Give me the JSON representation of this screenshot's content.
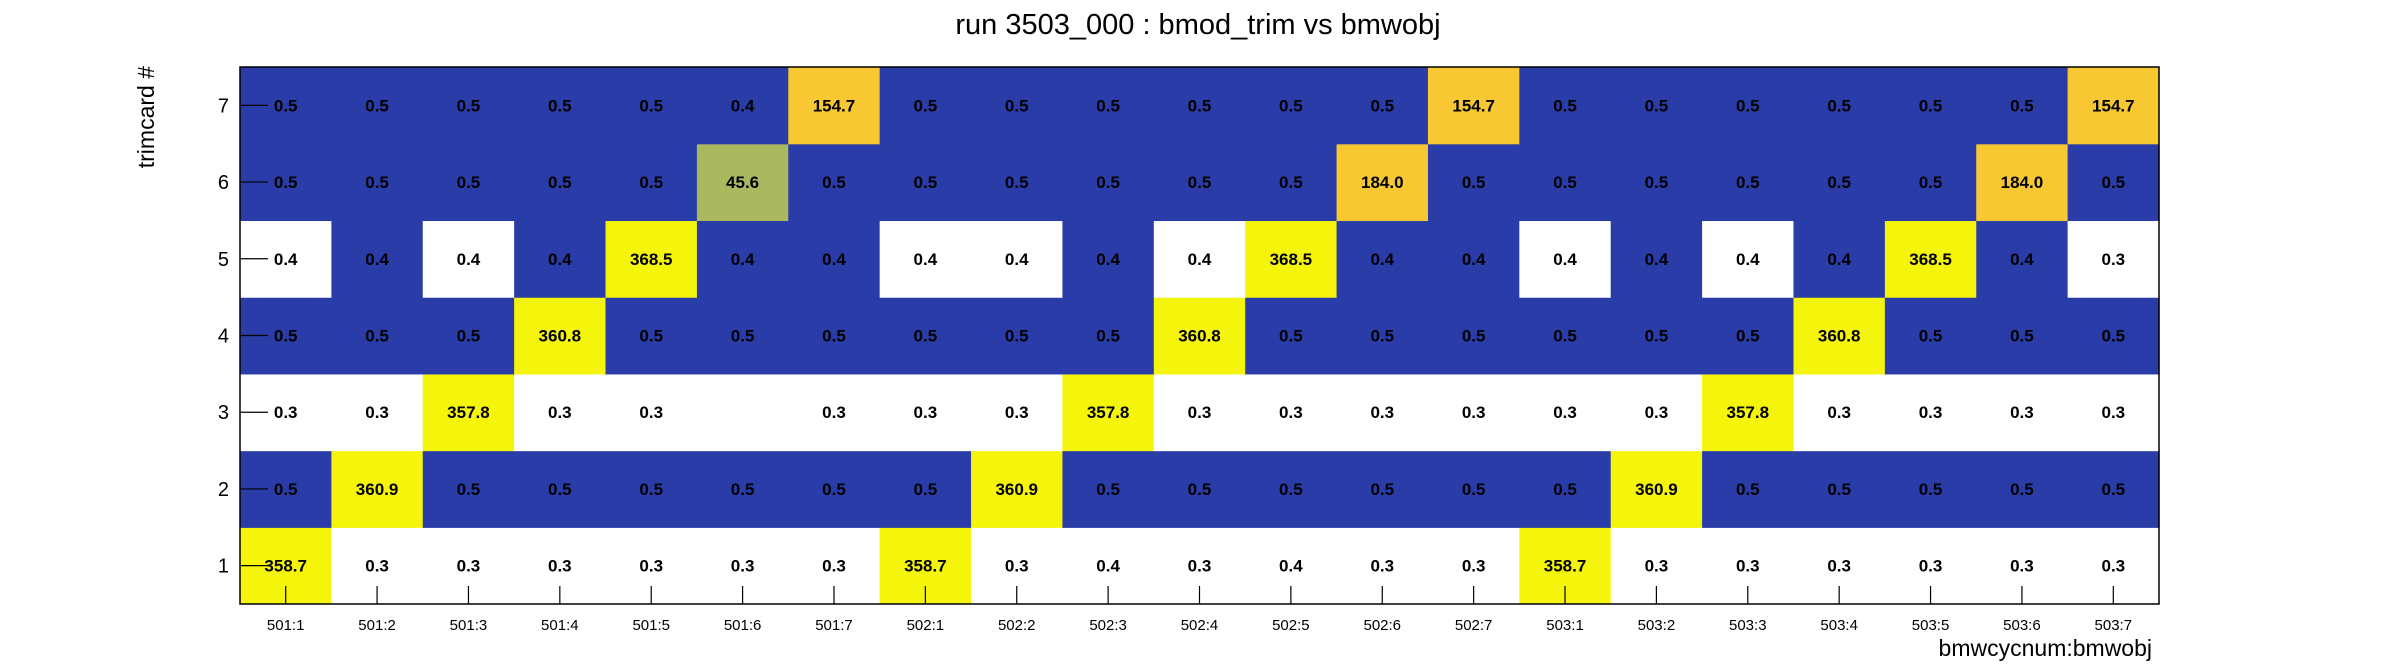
{
  "chart_data": {
    "type": "heatmap",
    "title": "run 3503_000 : bmod_trim vs bmwobj",
    "xlabel": "bmwcycnum:bmwobj",
    "ylabel": "trimcard #",
    "x_categories": [
      "501:1",
      "501:2",
      "501:3",
      "501:4",
      "501:5",
      "501:6",
      "501:7",
      "502:1",
      "502:2",
      "502:3",
      "502:4",
      "502:5",
      "502:6",
      "502:7",
      "503:1",
      "503:2",
      "503:3",
      "503:4",
      "503:5",
      "503:6",
      "503:7"
    ],
    "y_categories": [
      "1",
      "2",
      "3",
      "4",
      "5",
      "6",
      "7"
    ],
    "values": [
      [
        358.7,
        0.3,
        0.3,
        0.3,
        0.3,
        0.3,
        0.3,
        358.7,
        0.3,
        0.4,
        0.3,
        0.4,
        0.3,
        0.3,
        358.7,
        0.3,
        0.3,
        0.3,
        0.3,
        0.3,
        0.3
      ],
      [
        0.5,
        360.9,
        0.5,
        0.5,
        0.5,
        0.5,
        0.5,
        0.5,
        360.9,
        0.5,
        0.5,
        0.5,
        0.5,
        0.5,
        0.5,
        360.9,
        0.5,
        0.5,
        0.5,
        0.5,
        0.5
      ],
      [
        0.3,
        0.3,
        357.8,
        0.3,
        0.3,
        null,
        0.3,
        0.3,
        0.3,
        357.8,
        0.3,
        0.3,
        0.3,
        0.3,
        0.3,
        0.3,
        357.8,
        0.3,
        0.3,
        0.3,
        0.3
      ],
      [
        0.5,
        0.5,
        0.5,
        360.8,
        0.5,
        0.5,
        0.5,
        0.5,
        0.5,
        0.5,
        360.8,
        0.5,
        0.5,
        0.5,
        0.5,
        0.5,
        0.5,
        360.8,
        0.5,
        0.5,
        0.5
      ],
      [
        0.4,
        0.4,
        0.4,
        0.4,
        368.5,
        0.4,
        0.4,
        0.4,
        0.4,
        0.4,
        0.4,
        368.5,
        0.4,
        0.4,
        0.4,
        0.4,
        0.4,
        0.4,
        368.5,
        0.4,
        0.3
      ],
      [
        0.5,
        0.5,
        0.5,
        0.5,
        0.5,
        45.6,
        0.5,
        0.5,
        0.5,
        0.5,
        0.5,
        0.5,
        184.0,
        0.5,
        0.5,
        0.5,
        0.5,
        0.5,
        0.5,
        184.0,
        0.5
      ],
      [
        0.5,
        0.5,
        0.5,
        0.5,
        0.5,
        0.4,
        154.7,
        0.5,
        0.5,
        0.5,
        0.5,
        0.5,
        0.5,
        154.7,
        0.5,
        0.5,
        0.5,
        0.5,
        0.5,
        0.5,
        154.7
      ]
    ],
    "value_labels": [
      [
        "358.7",
        "0.3",
        "0.3",
        "0.3",
        "0.3",
        "0.3",
        "0.3",
        "358.7",
        "0.3",
        "0.4",
        "0.3",
        "0.4",
        "0.3",
        "0.3",
        "358.7",
        "0.3",
        "0.3",
        "0.3",
        "0.3",
        "0.3",
        "0.3"
      ],
      [
        "0.5",
        "360.9",
        "0.5",
        "0.5",
        "0.5",
        "0.5",
        "0.5",
        "0.5",
        "360.9",
        "0.5",
        "0.5",
        "0.5",
        "0.5",
        "0.5",
        "0.5",
        "360.9",
        "0.5",
        "0.5",
        "0.5",
        "0.5",
        "0.5"
      ],
      [
        "0.3",
        "0.3",
        "357.8",
        "0.3",
        "0.3",
        "",
        "0.3",
        "0.3",
        "0.3",
        "357.8",
        "0.3",
        "0.3",
        "0.3",
        "0.3",
        "0.3",
        "0.3",
        "357.8",
        "0.3",
        "0.3",
        "0.3",
        "0.3"
      ],
      [
        "0.5",
        "0.5",
        "0.5",
        "360.8",
        "0.5",
        "0.5",
        "0.5",
        "0.5",
        "0.5",
        "0.5",
        "360.8",
        "0.5",
        "0.5",
        "0.5",
        "0.5",
        "0.5",
        "0.5",
        "360.8",
        "0.5",
        "0.5",
        "0.5"
      ],
      [
        "0.4",
        "0.4",
        "0.4",
        "0.4",
        "368.5",
        "0.4",
        "0.4",
        "0.4",
        "0.4",
        "0.4",
        "0.4",
        "368.5",
        "0.4",
        "0.4",
        "0.4",
        "0.4",
        "0.4",
        "0.4",
        "368.5",
        "0.4",
        "0.3"
      ],
      [
        "0.5",
        "0.5",
        "0.5",
        "0.5",
        "0.5",
        "45.6",
        "0.5",
        "0.5",
        "0.5",
        "0.5",
        "0.5",
        "0.5",
        "184.0",
        "0.5",
        "0.5",
        "0.5",
        "0.5",
        "0.5",
        "0.5",
        "184.0",
        "0.5"
      ],
      [
        "0.5",
        "0.5",
        "0.5",
        "0.5",
        "0.5",
        "0.4",
        "154.7",
        "0.5",
        "0.5",
        "0.5",
        "0.5",
        "0.5",
        "0.5",
        "154.7",
        "0.5",
        "0.5",
        "0.5",
        "0.5",
        "0.5",
        "0.5",
        "154.7"
      ]
    ],
    "cell_colors": [
      [
        "#f5f50c",
        "#ffffff",
        "#ffffff",
        "#ffffff",
        "#ffffff",
        "#ffffff",
        "#ffffff",
        "#f5f50c",
        "#ffffff",
        "#ffffff",
        "#ffffff",
        "#ffffff",
        "#ffffff",
        "#ffffff",
        "#f5f50c",
        "#ffffff",
        "#ffffff",
        "#ffffff",
        "#ffffff",
        "#ffffff",
        "#ffffff"
      ],
      [
        "#2a3ca8",
        "#f5f50c",
        "#2a3ca8",
        "#2a3ca8",
        "#2a3ca8",
        "#2a3ca8",
        "#2a3ca8",
        "#2a3ca8",
        "#f5f50c",
        "#2a3ca8",
        "#2a3ca8",
        "#2a3ca8",
        "#2a3ca8",
        "#2a3ca8",
        "#2a3ca8",
        "#f5f50c",
        "#2a3ca8",
        "#2a3ca8",
        "#2a3ca8",
        "#2a3ca8",
        "#2a3ca8"
      ],
      [
        "#ffffff",
        "#ffffff",
        "#f5f50c",
        "#ffffff",
        "#ffffff",
        "#ffffff",
        "#ffffff",
        "#ffffff",
        "#ffffff",
        "#f5f50c",
        "#ffffff",
        "#ffffff",
        "#ffffff",
        "#ffffff",
        "#ffffff",
        "#ffffff",
        "#f5f50c",
        "#ffffff",
        "#ffffff",
        "#ffffff",
        "#ffffff"
      ],
      [
        "#2a3ca8",
        "#2a3ca8",
        "#2a3ca8",
        "#f5f50c",
        "#2a3ca8",
        "#2a3ca8",
        "#2a3ca8",
        "#2a3ca8",
        "#2a3ca8",
        "#2a3ca8",
        "#f5f50c",
        "#2a3ca8",
        "#2a3ca8",
        "#2a3ca8",
        "#2a3ca8",
        "#2a3ca8",
        "#2a3ca8",
        "#f5f50c",
        "#2a3ca8",
        "#2a3ca8",
        "#2a3ca8"
      ],
      [
        "#ffffff",
        "#2a3ca8",
        "#ffffff",
        "#2a3ca8",
        "#f5f50c",
        "#2a3ca8",
        "#2a3ca8",
        "#ffffff",
        "#ffffff",
        "#2a3ca8",
        "#ffffff",
        "#f5f50c",
        "#2a3ca8",
        "#2a3ca8",
        "#ffffff",
        "#2a3ca8",
        "#ffffff",
        "#2a3ca8",
        "#f5f50c",
        "#2a3ca8",
        "#ffffff"
      ],
      [
        "#2a3ca8",
        "#2a3ca8",
        "#2a3ca8",
        "#2a3ca8",
        "#2a3ca8",
        "#aab85f",
        "#2a3ca8",
        "#2a3ca8",
        "#2a3ca8",
        "#2a3ca8",
        "#2a3ca8",
        "#2a3ca8",
        "#f8c832",
        "#2a3ca8",
        "#2a3ca8",
        "#2a3ca8",
        "#2a3ca8",
        "#2a3ca8",
        "#2a3ca8",
        "#f8c832",
        "#2a3ca8"
      ],
      [
        "#2a3ca8",
        "#2a3ca8",
        "#2a3ca8",
        "#2a3ca8",
        "#2a3ca8",
        "#2a3ca8",
        "#f8c832",
        "#2a3ca8",
        "#2a3ca8",
        "#2a3ca8",
        "#2a3ca8",
        "#2a3ca8",
        "#2a3ca8",
        "#f8c832",
        "#2a3ca8",
        "#2a3ca8",
        "#2a3ca8",
        "#2a3ca8",
        "#2a3ca8",
        "#2a3ca8",
        "#f8c832"
      ]
    ],
    "grid": false,
    "legend": "none"
  }
}
